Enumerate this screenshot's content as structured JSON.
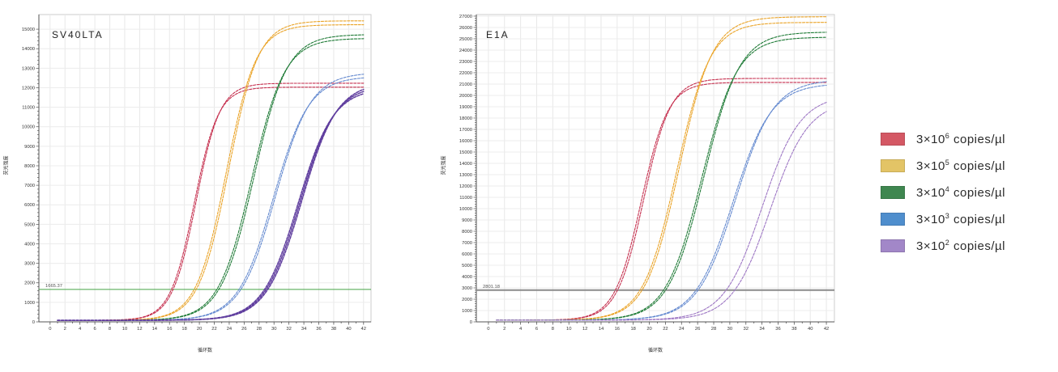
{
  "figure": {
    "background": "#ffffff"
  },
  "legend": {
    "position": "right",
    "items": [
      {
        "id": "3e6",
        "color": "#d45864",
        "base": "3×10",
        "exp": "6",
        "unit": "copies/µl"
      },
      {
        "id": "3e5",
        "color": "#e3c466",
        "base": "3×10",
        "exp": "5",
        "unit": "copies/µl"
      },
      {
        "id": "3e4",
        "color": "#3f8750",
        "base": "3×10",
        "exp": "4",
        "unit": "copies/µl"
      },
      {
        "id": "3e3",
        "color": "#4f8ecd",
        "base": "3×10",
        "exp": "3",
        "unit": "copies/µl"
      },
      {
        "id": "3e2",
        "color": "#a287c8",
        "base": "3×10",
        "exp": "2",
        "unit": "copies/µl"
      }
    ]
  },
  "chart_data": [
    {
      "type": "line",
      "title": "SV40LTA",
      "xlabel": "循环数",
      "ylabel": "荧光强度",
      "xlim": [
        0,
        42
      ],
      "x_tick_step": 2,
      "ylim": [
        0,
        15000
      ],
      "y_tick_step": 1000,
      "x_draw": [
        -1.5,
        43
      ],
      "y_draw_max": 15750,
      "grid": true,
      "baseline": 80,
      "threshold": {
        "value": 1665.37,
        "label": "1665.37",
        "color": "#46a546",
        "width": 1
      },
      "series": [
        {
          "id": "3e6",
          "name": "3×10^6 copies/µl",
          "color": "#c52e4d",
          "k": 0.62,
          "width": 1.1,
          "replicates": [
            {
              "mid": 19.3,
              "plateau": 11950
            },
            {
              "mid": 19.55,
              "plateau": 12150
            }
          ]
        },
        {
          "id": "3e5",
          "name": "3×10^5 copies/µl",
          "color": "#eaa326",
          "k": 0.5,
          "width": 1.1,
          "replicates": [
            {
              "mid": 23.6,
              "plateau": 15150
            },
            {
              "mid": 23.9,
              "plateau": 15350
            }
          ]
        },
        {
          "id": "3e4",
          "name": "3×10^4 copies/µl",
          "color": "#1d7a35",
          "k": 0.45,
          "width": 1.1,
          "replicates": [
            {
              "mid": 27.0,
              "plateau": 14450
            },
            {
              "mid": 27.3,
              "plateau": 14650
            }
          ]
        },
        {
          "id": "3e3",
          "name": "3×10^3 copies/µl",
          "color": "#6288cf",
          "k": 0.42,
          "width": 1.1,
          "replicates": [
            {
              "mid": 29.9,
              "plateau": 12500
            },
            {
              "mid": 30.2,
              "plateau": 12700
            }
          ]
        },
        {
          "id": "3e2",
          "name": "3×10^2 copies/µl",
          "color": "#5f3d9e",
          "k": 0.42,
          "width": 1.5,
          "replicates": [
            {
              "mid": 33.2,
              "plateau": 11900
            },
            {
              "mid": 33.45,
              "plateau": 12050
            },
            {
              "mid": 33.7,
              "plateau": 12200
            }
          ]
        }
      ]
    },
    {
      "type": "line",
      "title": "E1A",
      "xlabel": "循环数",
      "ylabel": "荧光强度",
      "xlim": [
        0,
        42
      ],
      "x_tick_step": 2,
      "ylim": [
        0,
        27000
      ],
      "y_tick_step": 1000,
      "x_draw": [
        -1.5,
        43
      ],
      "y_draw_max": 27140,
      "grid": true,
      "baseline": 150,
      "threshold": {
        "value": 2801.18,
        "label": "2801.18",
        "color": "#8b8b8b",
        "width": 2
      },
      "series": [
        {
          "id": "3e6",
          "name": "3×10^6 copies/µl",
          "color": "#c52e4d",
          "k": 0.6,
          "width": 1.1,
          "replicates": [
            {
              "mid": 19.0,
              "plateau": 21000
            },
            {
              "mid": 19.3,
              "plateau": 21350
            }
          ]
        },
        {
          "id": "3e5",
          "name": "3×10^5 copies/µl",
          "color": "#eaa326",
          "k": 0.48,
          "width": 1.1,
          "replicates": [
            {
              "mid": 23.4,
              "plateau": 26300
            },
            {
              "mid": 23.7,
              "plateau": 26800
            }
          ]
        },
        {
          "id": "3e4",
          "name": "3×10^4 copies/µl",
          "color": "#1d7a35",
          "k": 0.45,
          "width": 1.1,
          "replicates": [
            {
              "mid": 26.5,
              "plateau": 25000
            },
            {
              "mid": 26.8,
              "plateau": 25450
            }
          ]
        },
        {
          "id": "3e3",
          "name": "3×10^3 copies/µl",
          "color": "#6288cf",
          "k": 0.42,
          "width": 1.1,
          "replicates": [
            {
              "mid": 30.4,
              "plateau": 20900
            },
            {
              "mid": 30.7,
              "plateau": 21250
            }
          ]
        },
        {
          "id": "3e2",
          "name": "3×10^2 copies/µl",
          "color": "#9d76c4",
          "k": 0.42,
          "width": 1.1,
          "replicates": [
            {
              "mid": 34.0,
              "plateau": 19900
            },
            {
              "mid": 35.0,
              "plateau": 19400
            }
          ]
        }
      ]
    }
  ]
}
